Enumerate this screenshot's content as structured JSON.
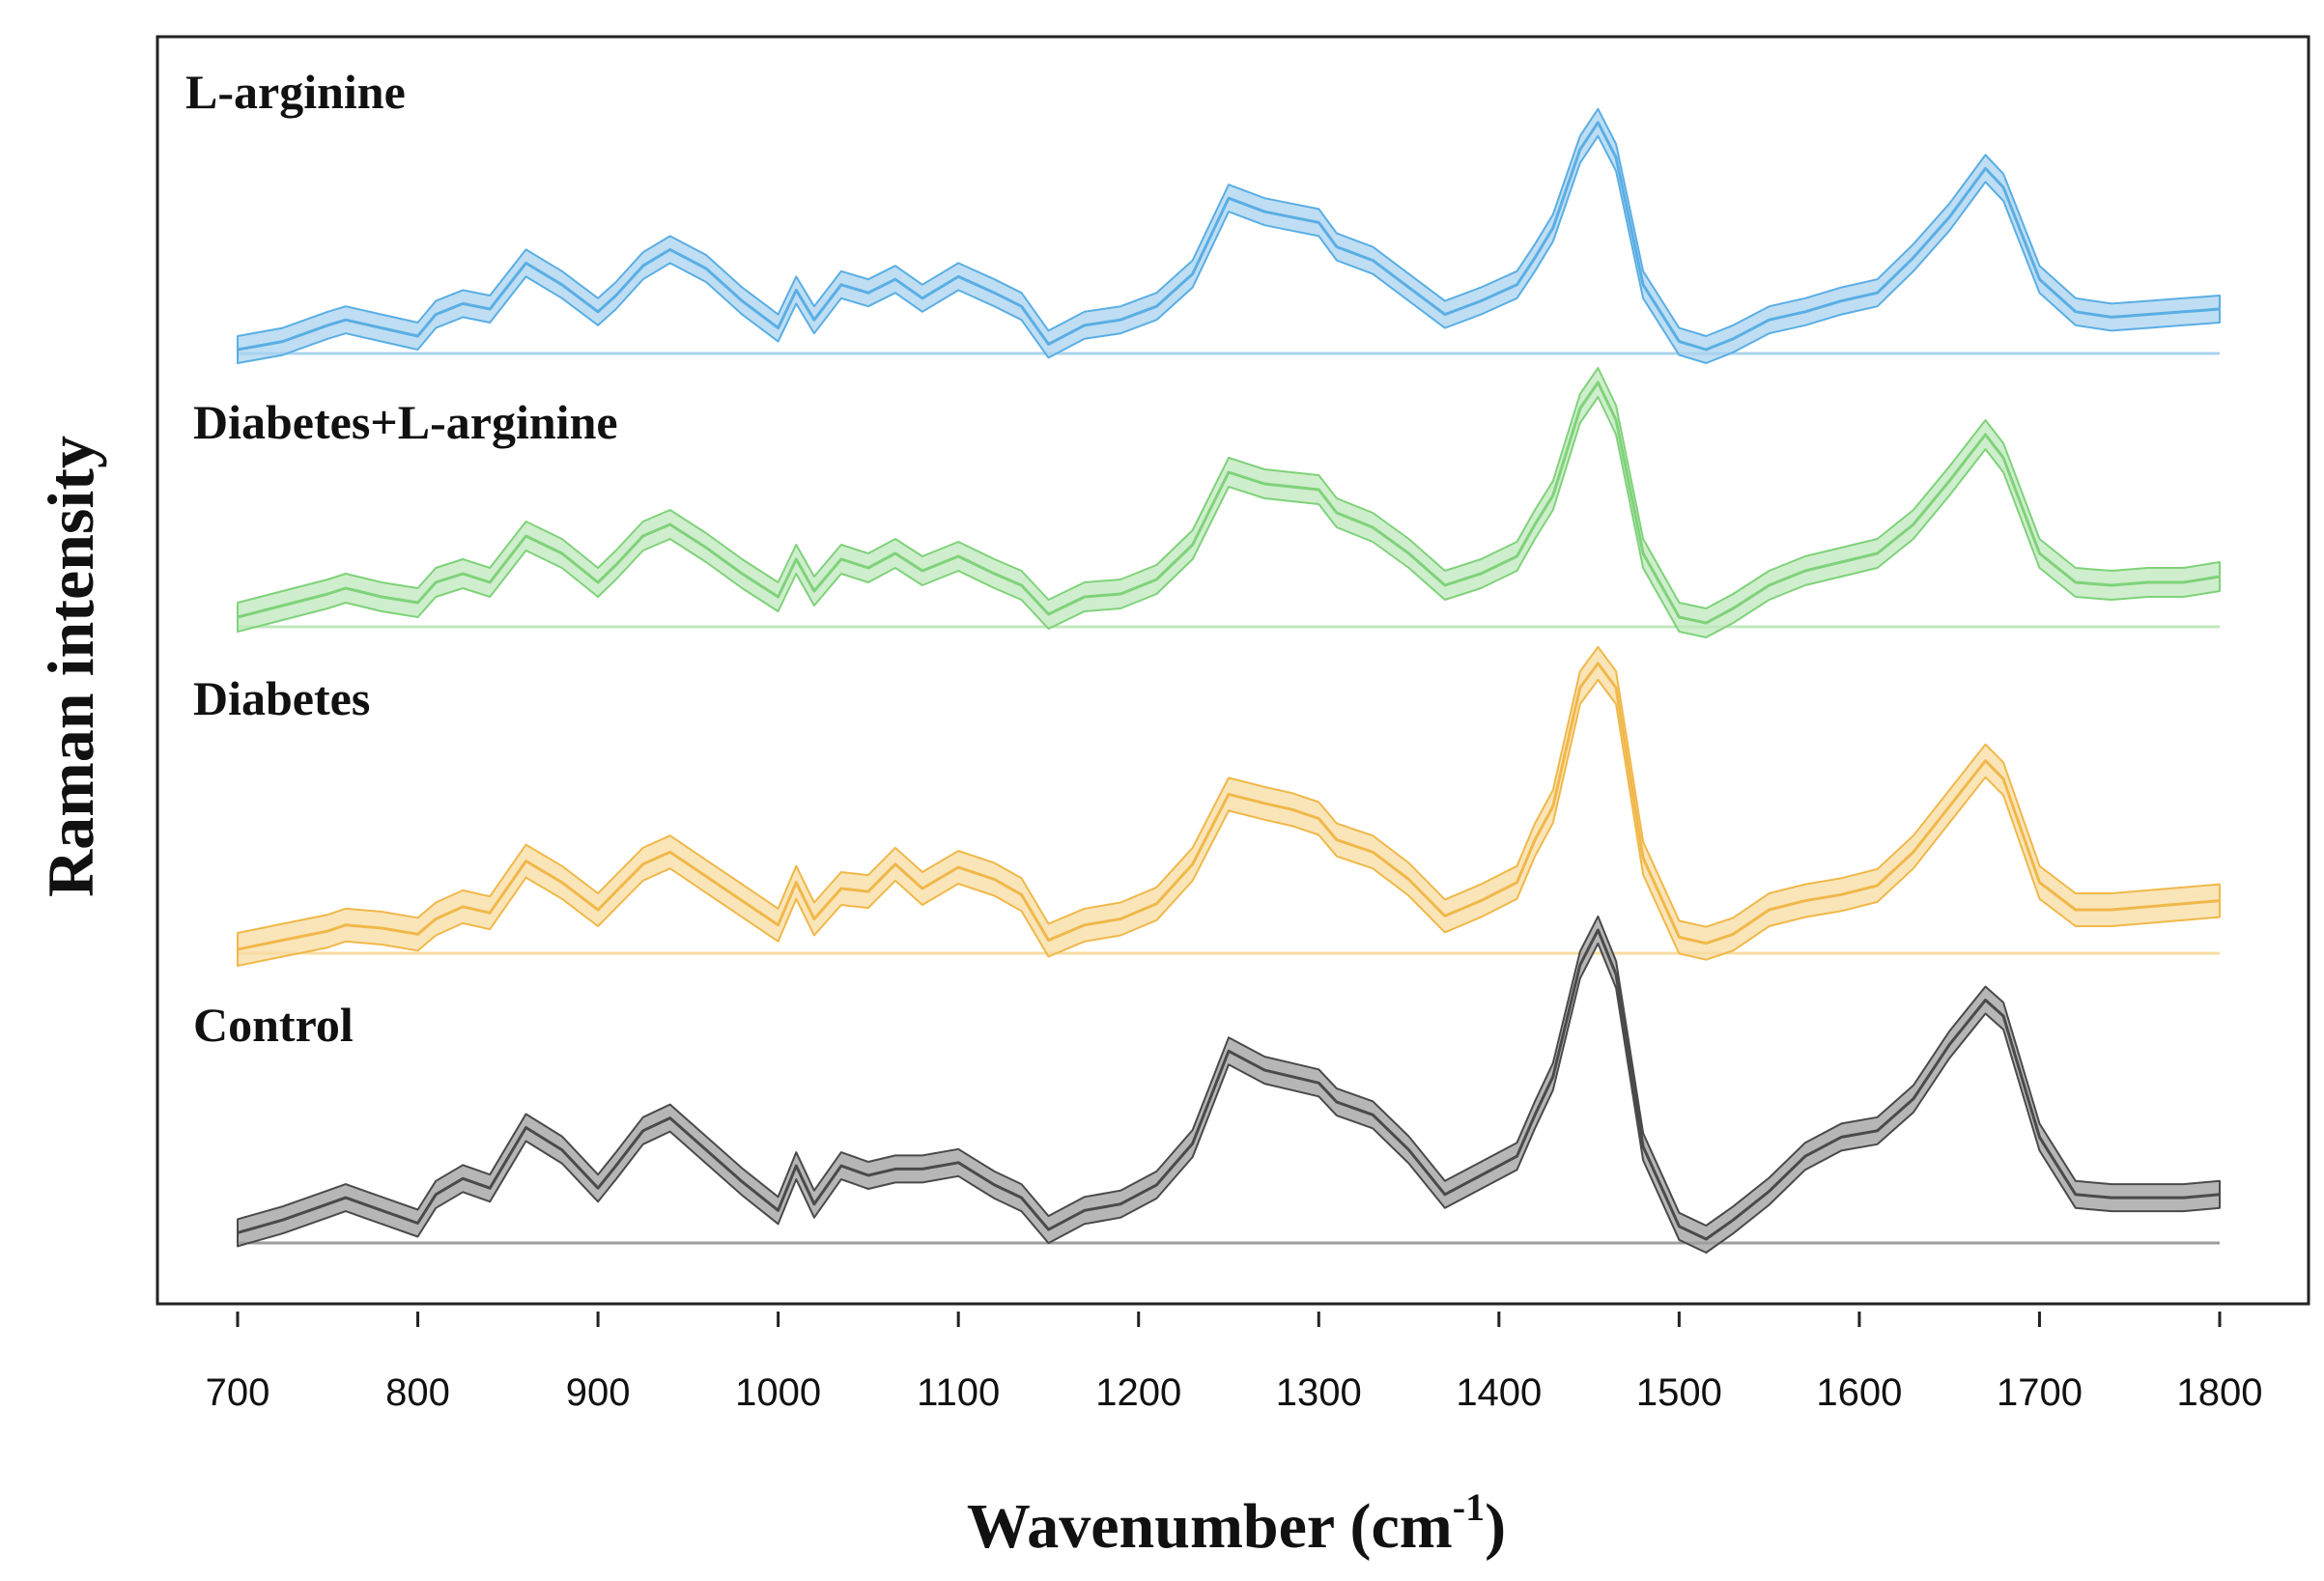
{
  "chart_data": {
    "type": "line",
    "title": "",
    "xlabel": "Wavenumber (cm",
    "xlabel_superscript": "-1",
    "xlabel_close": ")",
    "ylabel": "Raman intensity",
    "xlim": [
      700,
      1800
    ],
    "x_ticks": [
      "700",
      "800",
      "900",
      "1000",
      "1100",
      "1200",
      "1300",
      "1400",
      "1500",
      "1600",
      "1700",
      "1800"
    ],
    "x_tick_values": [
      700,
      800,
      900,
      1000,
      1100,
      1200,
      1300,
      1400,
      1500,
      1600,
      1700,
      1800
    ],
    "band_description": "mean ± standard deviation shaded band per series",
    "x": [
      700,
      725,
      750,
      760,
      780,
      800,
      810,
      825,
      840,
      860,
      880,
      900,
      910,
      925,
      940,
      960,
      980,
      1000,
      1010,
      1020,
      1035,
      1050,
      1065,
      1080,
      1100,
      1120,
      1135,
      1150,
      1170,
      1190,
      1210,
      1230,
      1250,
      1270,
      1285,
      1300,
      1310,
      1330,
      1350,
      1370,
      1390,
      1410,
      1420,
      1430,
      1445,
      1455,
      1465,
      1480,
      1500,
      1515,
      1530,
      1550,
      1570,
      1590,
      1610,
      1630,
      1650,
      1670,
      1680,
      1700,
      1720,
      1740,
      1760,
      1780,
      1800
    ],
    "series": [
      {
        "name": "L-arginine",
        "color": "#5aaee4",
        "fill": "#a9d3ef",
        "values": [
          0.0,
          0.03,
          0.09,
          0.11,
          0.08,
          0.05,
          0.13,
          0.17,
          0.15,
          0.32,
          0.24,
          0.14,
          0.2,
          0.31,
          0.37,
          0.3,
          0.18,
          0.08,
          0.22,
          0.11,
          0.24,
          0.21,
          0.26,
          0.19,
          0.27,
          0.21,
          0.16,
          0.02,
          0.09,
          0.11,
          0.16,
          0.28,
          0.56,
          0.51,
          0.49,
          0.47,
          0.38,
          0.33,
          0.23,
          0.13,
          0.18,
          0.24,
          0.34,
          0.45,
          0.74,
          0.84,
          0.71,
          0.24,
          0.03,
          0.0,
          0.04,
          0.11,
          0.14,
          0.18,
          0.21,
          0.34,
          0.49,
          0.67,
          0.6,
          0.26,
          0.14,
          0.12,
          0.13,
          0.14,
          0.15
        ]
      },
      {
        "name": "Diabetes+L-arginine",
        "color": "#7fd27a",
        "fill": "#bfe8bc",
        "values": [
          0.02,
          0.06,
          0.1,
          0.12,
          0.09,
          0.07,
          0.14,
          0.17,
          0.14,
          0.3,
          0.24,
          0.14,
          0.2,
          0.3,
          0.34,
          0.26,
          0.17,
          0.09,
          0.22,
          0.11,
          0.22,
          0.19,
          0.24,
          0.18,
          0.23,
          0.17,
          0.13,
          0.03,
          0.09,
          0.1,
          0.15,
          0.27,
          0.52,
          0.48,
          0.47,
          0.46,
          0.38,
          0.33,
          0.24,
          0.13,
          0.17,
          0.23,
          0.34,
          0.44,
          0.74,
          0.83,
          0.7,
          0.24,
          0.02,
          0.0,
          0.05,
          0.13,
          0.18,
          0.21,
          0.24,
          0.34,
          0.49,
          0.65,
          0.57,
          0.24,
          0.14,
          0.13,
          0.14,
          0.14,
          0.16
        ]
      },
      {
        "name": "Diabetes",
        "color": "#f0b84a",
        "fill": "#f8dca2",
        "values": [
          0.0,
          0.03,
          0.06,
          0.08,
          0.07,
          0.05,
          0.1,
          0.14,
          0.12,
          0.29,
          0.22,
          0.13,
          0.19,
          0.28,
          0.32,
          0.24,
          0.16,
          0.08,
          0.22,
          0.1,
          0.2,
          0.19,
          0.28,
          0.2,
          0.27,
          0.23,
          0.18,
          0.03,
          0.08,
          0.1,
          0.15,
          0.28,
          0.51,
          0.48,
          0.46,
          0.43,
          0.36,
          0.32,
          0.23,
          0.11,
          0.16,
          0.22,
          0.36,
          0.47,
          0.86,
          0.94,
          0.86,
          0.3,
          0.04,
          0.02,
          0.05,
          0.13,
          0.16,
          0.18,
          0.21,
          0.32,
          0.47,
          0.62,
          0.56,
          0.22,
          0.13,
          0.13,
          0.14,
          0.15,
          0.16
        ]
      },
      {
        "name": "Control",
        "color": "#4a4a4a",
        "fill": "#9e9e9e",
        "values": [
          0.02,
          0.06,
          0.11,
          0.13,
          0.09,
          0.05,
          0.14,
          0.19,
          0.16,
          0.35,
          0.28,
          0.16,
          0.23,
          0.34,
          0.38,
          0.28,
          0.18,
          0.09,
          0.23,
          0.11,
          0.23,
          0.2,
          0.22,
          0.22,
          0.24,
          0.17,
          0.13,
          0.03,
          0.09,
          0.11,
          0.17,
          0.3,
          0.59,
          0.53,
          0.51,
          0.49,
          0.43,
          0.39,
          0.28,
          0.14,
          0.2,
          0.26,
          0.39,
          0.51,
          0.86,
          0.97,
          0.83,
          0.29,
          0.04,
          0.0,
          0.06,
          0.15,
          0.26,
          0.32,
          0.34,
          0.44,
          0.61,
          0.75,
          0.7,
          0.32,
          0.14,
          0.13,
          0.13,
          0.13,
          0.14
        ]
      }
    ]
  }
}
